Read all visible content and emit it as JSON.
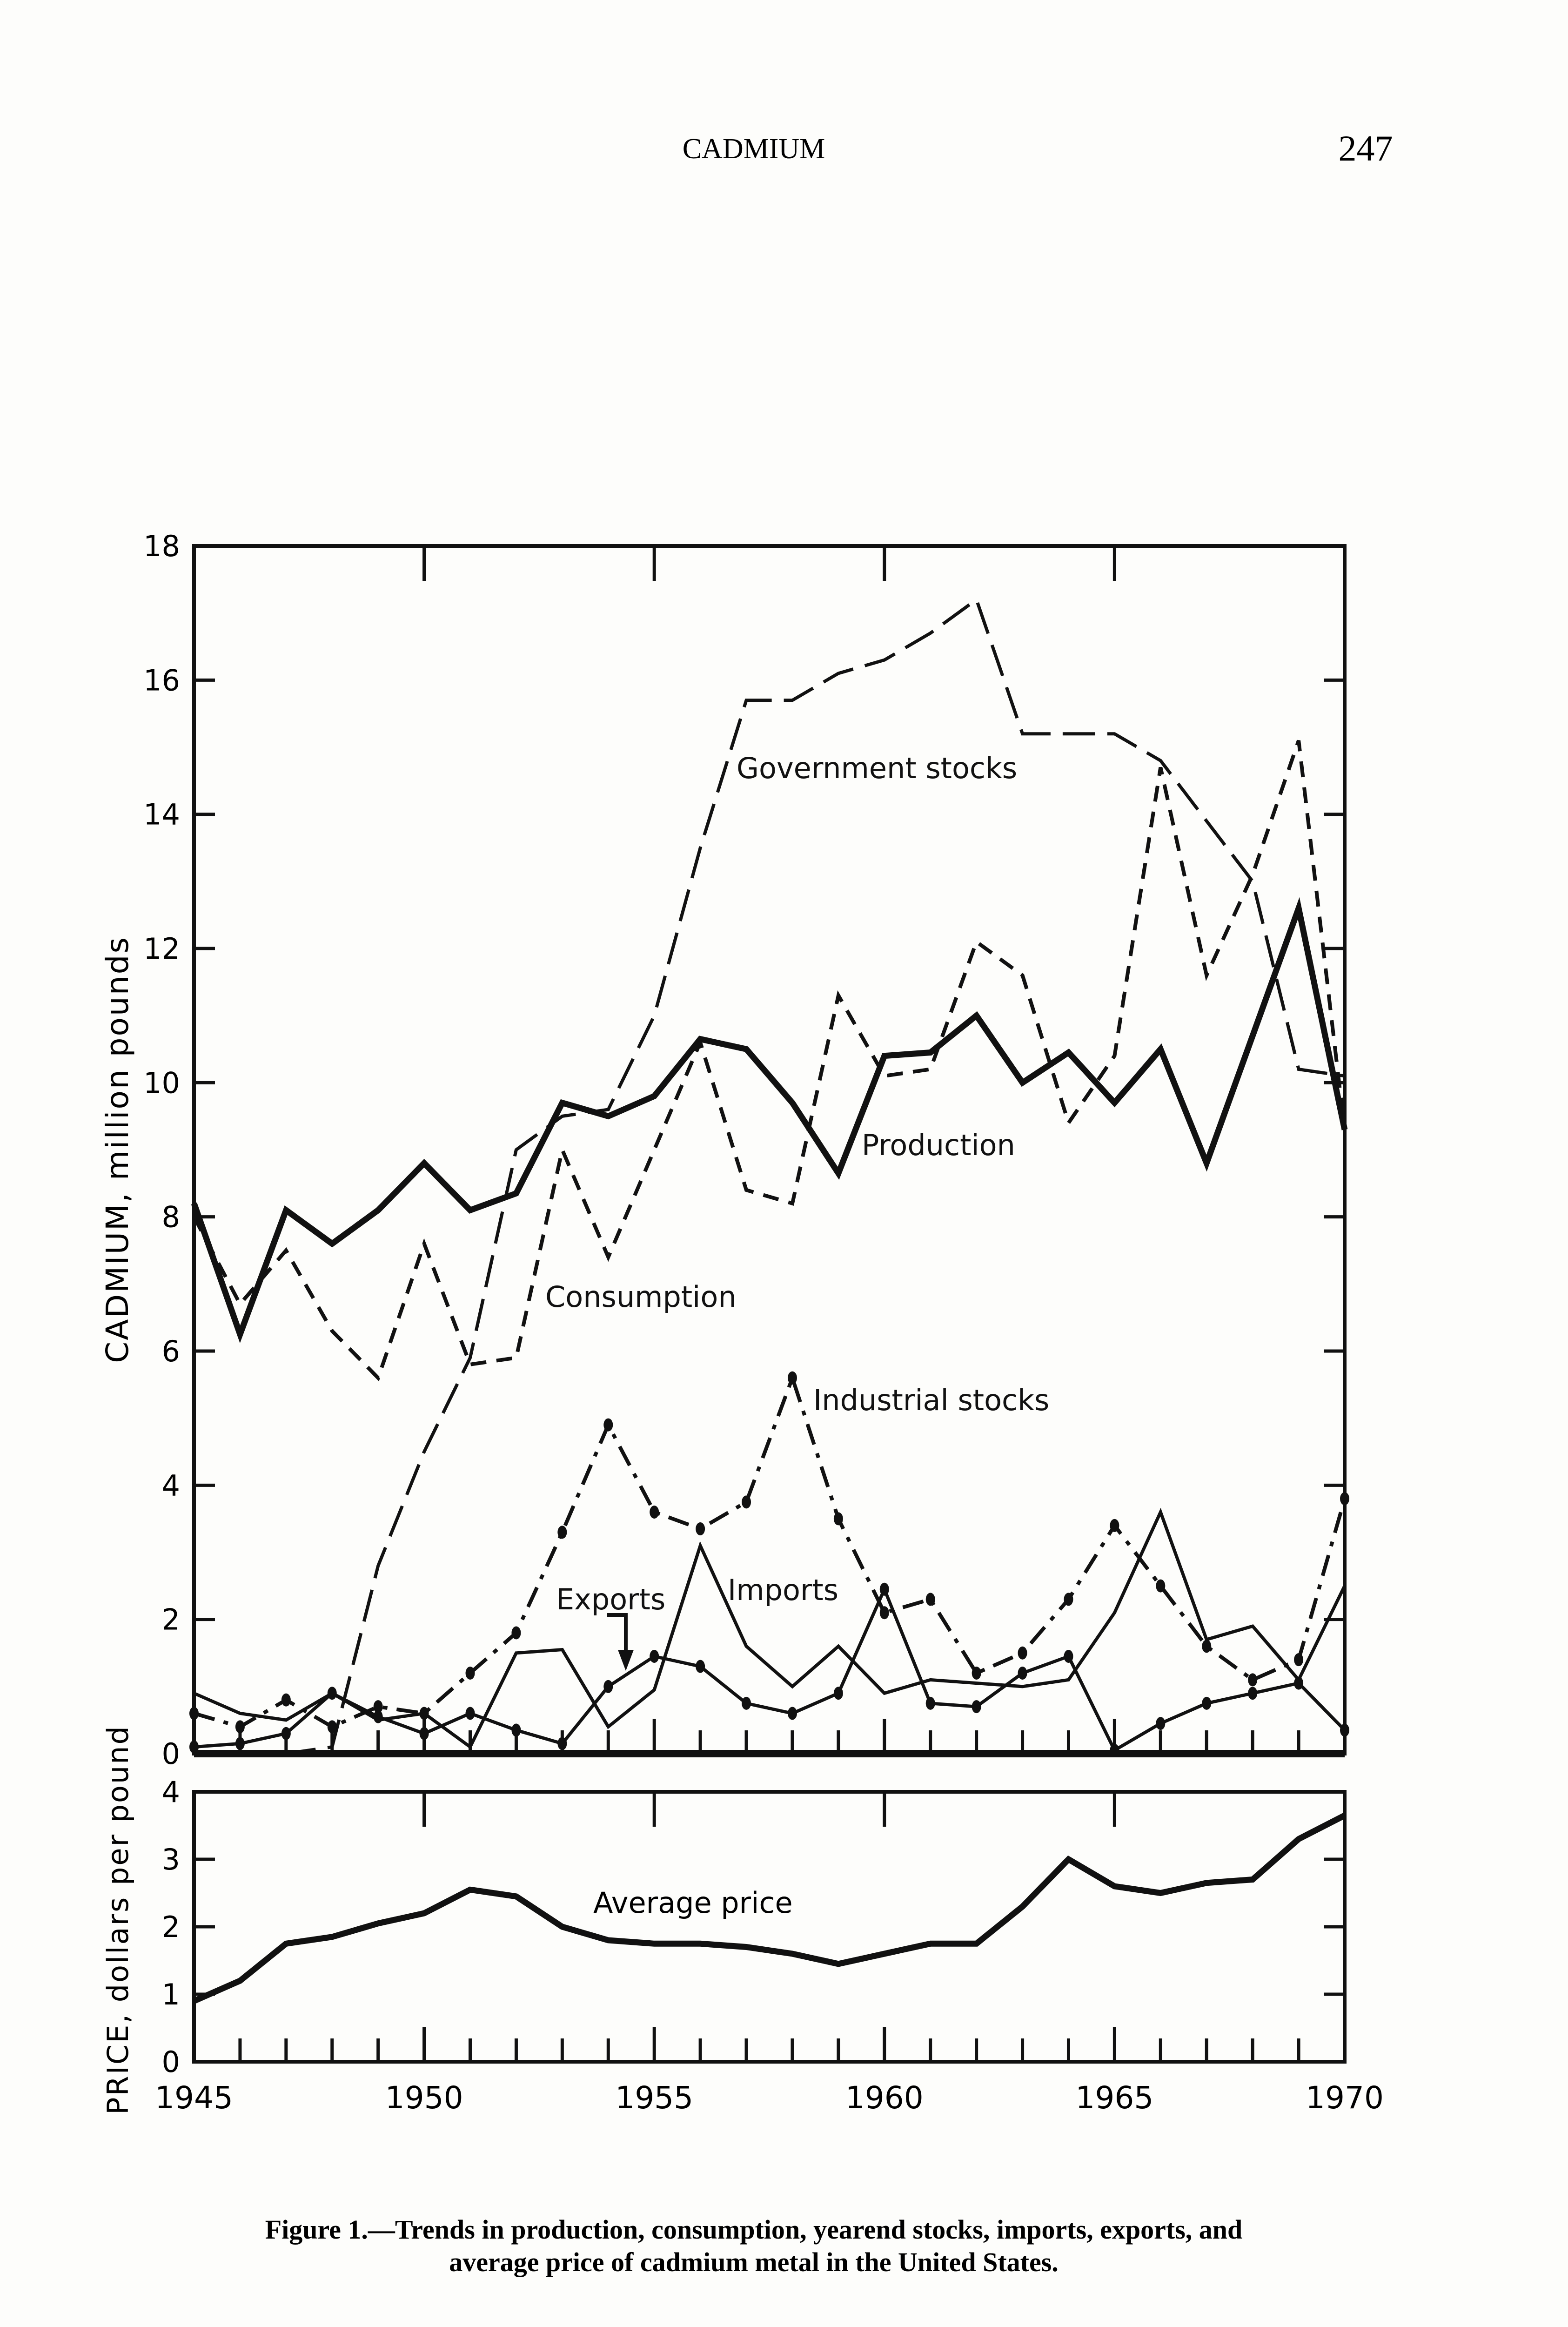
{
  "header": {
    "running_title": "CADMIUM",
    "page_number": "247"
  },
  "caption": {
    "line1": "Figure 1.—Trends in production, consumption, yearend stocks, imports, exports, and",
    "line2": "average price of cadmium metal in the United States."
  },
  "chart_data": [
    {
      "type": "line",
      "title": "",
      "xlabel": "",
      "ylabel": "CADMIUM, million pounds",
      "xlim": [
        1945,
        1970
      ],
      "ylim": [
        0,
        18
      ],
      "yticks": [
        "0",
        "2",
        "4",
        "6",
        "8",
        "10",
        "12",
        "14",
        "16",
        "18"
      ],
      "x": [
        1945,
        1946,
        1947,
        1948,
        1949,
        1950,
        1951,
        1952,
        1953,
        1954,
        1955,
        1956,
        1957,
        1958,
        1959,
        1960,
        1961,
        1962,
        1963,
        1964,
        1965,
        1966,
        1967,
        1968,
        1969,
        1970
      ],
      "series": [
        {
          "name": "Government stocks",
          "style": "long-dash",
          "values": [
            0,
            0,
            0,
            0.1,
            2.8,
            4.5,
            5.9,
            9.0,
            9.5,
            9.6,
            11.0,
            13.5,
            15.7,
            15.7,
            16.1,
            16.3,
            16.7,
            17.2,
            15.2,
            15.2,
            15.2,
            14.8,
            13.9,
            13.0,
            10.2,
            10.1
          ]
        },
        {
          "name": "Production",
          "style": "thick-solid",
          "values": [
            8.2,
            6.25,
            8.1,
            7.6,
            8.1,
            8.8,
            8.1,
            8.35,
            9.7,
            9.5,
            9.8,
            10.65,
            10.5,
            9.7,
            8.65,
            10.4,
            10.45,
            11.0,
            10.0,
            10.45,
            9.7,
            10.5,
            8.8,
            10.7,
            12.6,
            9.3
          ]
        },
        {
          "name": "Consumption",
          "style": "short-dash",
          "values": [
            8.0,
            6.7,
            7.5,
            6.3,
            5.6,
            7.6,
            5.8,
            5.9,
            9.0,
            7.4,
            9.0,
            10.6,
            8.4,
            8.2,
            11.3,
            10.1,
            10.2,
            12.1,
            11.6,
            9.4,
            10.4,
            14.7,
            11.6,
            13.1,
            15.1,
            9.3
          ]
        },
        {
          "name": "Industrial stocks",
          "style": "dash-dot",
          "values": [
            0.6,
            0.4,
            0.8,
            0.4,
            0.7,
            0.6,
            1.2,
            1.8,
            3.3,
            4.9,
            3.6,
            3.35,
            3.75,
            5.6,
            3.5,
            2.1,
            2.3,
            1.2,
            1.5,
            2.3,
            3.4,
            2.5,
            1.6,
            1.1,
            1.4,
            3.8
          ]
        },
        {
          "name": "Imports",
          "style": "thin-solid",
          "values": [
            0.9,
            0.6,
            0.5,
            0.9,
            0.5,
            0.6,
            0.1,
            1.5,
            1.55,
            0.4,
            0.95,
            3.1,
            1.6,
            1.0,
            1.6,
            0.9,
            1.1,
            1.05,
            1.0,
            1.1,
            2.1,
            3.6,
            1.7,
            1.9,
            1.1,
            2.5
          ]
        },
        {
          "name": "Exports",
          "style": "thin-solid-dots",
          "values": [
            0.1,
            0.15,
            0.3,
            0.9,
            0.55,
            0.3,
            0.6,
            0.35,
            0.15,
            1.0,
            1.45,
            1.3,
            0.75,
            0.6,
            0.9,
            2.45,
            0.75,
            0.7,
            1.2,
            1.45,
            0.05,
            0.45,
            0.75,
            0.9,
            1.05,
            0.35
          ]
        }
      ],
      "labels": {
        "government": "Government stocks",
        "production": "Production",
        "consumption": "Consumption",
        "industrial": "Industrial stocks",
        "exports": "Exports",
        "imports": "Imports"
      },
      "grid": false
    },
    {
      "type": "line",
      "title": "",
      "xlabel": "",
      "ylabel": "PRICE, dollars per pound",
      "xlim": [
        1945,
        1970
      ],
      "ylim": [
        0,
        4
      ],
      "yticks": [
        "0",
        "1",
        "2",
        "3",
        "4"
      ],
      "xticks": [
        "1945",
        "1950",
        "1955",
        "1960",
        "1965",
        "1970"
      ],
      "x": [
        1945,
        1946,
        1947,
        1948,
        1949,
        1950,
        1951,
        1952,
        1953,
        1954,
        1955,
        1956,
        1957,
        1958,
        1959,
        1960,
        1961,
        1962,
        1963,
        1964,
        1965,
        1966,
        1967,
        1968,
        1969,
        1970
      ],
      "series": [
        {
          "name": "Average price",
          "style": "thick-solid",
          "values": [
            0.9,
            1.2,
            1.75,
            1.85,
            2.05,
            2.2,
            2.55,
            2.45,
            2.0,
            1.8,
            1.75,
            1.75,
            1.7,
            1.6,
            1.45,
            1.6,
            1.75,
            1.75,
            2.3,
            3.0,
            2.6,
            2.5,
            2.65,
            2.7,
            3.3,
            3.65
          ]
        }
      ],
      "labels": {
        "price": "Average price"
      },
      "grid": false
    }
  ]
}
